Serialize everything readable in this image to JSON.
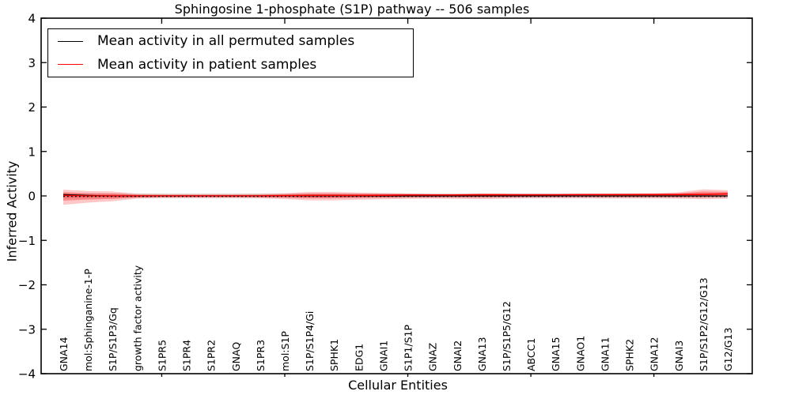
{
  "chart_data": {
    "type": "line",
    "title": "Sphingosine 1-phosphate (S1P) pathway -- 506 samples",
    "xlabel": "Cellular Entities",
    "ylabel": "Inferred Activity",
    "ylim": [
      -4,
      4
    ],
    "yticks": [
      4,
      3,
      2,
      1,
      0,
      -1,
      -2,
      -3,
      -4
    ],
    "xtick_indices": [
      4,
      9,
      14,
      19,
      24
    ],
    "grid": false,
    "legend": {
      "position": "upper-left",
      "entries": [
        {
          "label": "Mean activity in all permuted samples",
          "color": "#000000"
        },
        {
          "label": "Mean activity in patient samples",
          "color": "#ff0000"
        }
      ]
    },
    "categories": [
      "GNA14",
      "mol:Sphinganine-1-P",
      "S1P/S1P3/Gq",
      "growth factor activity",
      "S1PR5",
      "S1PR4",
      "S1PR2",
      "GNAQ",
      "S1PR3",
      "mol:S1P",
      "S1P/S1P4/Gi",
      "SPHK1",
      "EDG1",
      "GNAI1",
      "S1P1/S1P",
      "GNAZ",
      "GNAI2",
      "GNA13",
      "S1P/S1P5/G12",
      "ABCC1",
      "GNA15",
      "GNAO1",
      "GNA11",
      "SPHK2",
      "GNA12",
      "GNAI3",
      "S1P/S1P2/G12/G13",
      "G12/G13"
    ],
    "series": [
      {
        "name": "Mean activity in all permuted samples",
        "color": "#000000",
        "values": [
          0.03,
          0.01,
          0,
          0,
          0,
          0,
          0,
          0,
          0,
          0,
          0,
          0,
          0,
          0,
          0,
          0,
          0,
          0,
          0,
          0,
          0,
          0,
          0,
          0,
          0,
          0,
          0,
          0
        ]
      },
      {
        "name": "Mean activity in patient samples",
        "color": "#ff0000",
        "values": [
          0.01,
          0,
          0,
          0,
          0,
          0,
          0,
          0,
          0,
          0.005,
          0.01,
          0.01,
          0.01,
          0.015,
          0.02,
          0.02,
          0.02,
          0.025,
          0.025,
          0.025,
          0.025,
          0.03,
          0.03,
          0.03,
          0.03,
          0.03,
          0.035,
          0.045
        ]
      }
    ],
    "bands": [
      {
        "name": "permuted-std-band",
        "color": "#e2e2e2",
        "opacity": 1,
        "upper": [
          0.055,
          0.055,
          0.055,
          0.055,
          0.055,
          0.055,
          0.055,
          0.055,
          0.055,
          0.055,
          0.055,
          0.055,
          0.055,
          0.055,
          0.055,
          0.055,
          0.055,
          0.055,
          0.055,
          0.055,
          0.055,
          0.055,
          0.055,
          0.055,
          0.055,
          0.055,
          0.055,
          0.055
        ],
        "lower": [
          -0.05,
          -0.05,
          -0.05,
          -0.05,
          -0.05,
          -0.05,
          -0.05,
          -0.05,
          -0.05,
          -0.05,
          -0.05,
          -0.05,
          -0.05,
          -0.05,
          -0.05,
          -0.05,
          -0.05,
          -0.05,
          -0.05,
          -0.05,
          -0.05,
          -0.05,
          -0.05,
          -0.05,
          -0.05,
          -0.05,
          -0.05,
          -0.05
        ]
      },
      {
        "name": "patient-std-band",
        "color": "#ff0000",
        "opacity": 0.22,
        "upper": [
          0.14,
          0.11,
          0.1,
          0.05,
          0.04,
          0.04,
          0.04,
          0.04,
          0.045,
          0.06,
          0.09,
          0.09,
          0.075,
          0.065,
          0.055,
          0.05,
          0.05,
          0.055,
          0.05,
          0.045,
          0.045,
          0.045,
          0.05,
          0.055,
          0.06,
          0.08,
          0.15,
          0.13
        ],
        "lower": [
          -0.2,
          -0.15,
          -0.12,
          -0.06,
          -0.045,
          -0.045,
          -0.045,
          -0.045,
          -0.05,
          -0.07,
          -0.1,
          -0.1,
          -0.085,
          -0.075,
          -0.065,
          -0.06,
          -0.065,
          -0.07,
          -0.06,
          -0.05,
          -0.05,
          -0.05,
          -0.055,
          -0.055,
          -0.055,
          -0.06,
          -0.07,
          -0.06
        ]
      }
    ],
    "zero_line": {
      "style": "dotted",
      "color": "#000000",
      "y": -0.01
    }
  }
}
